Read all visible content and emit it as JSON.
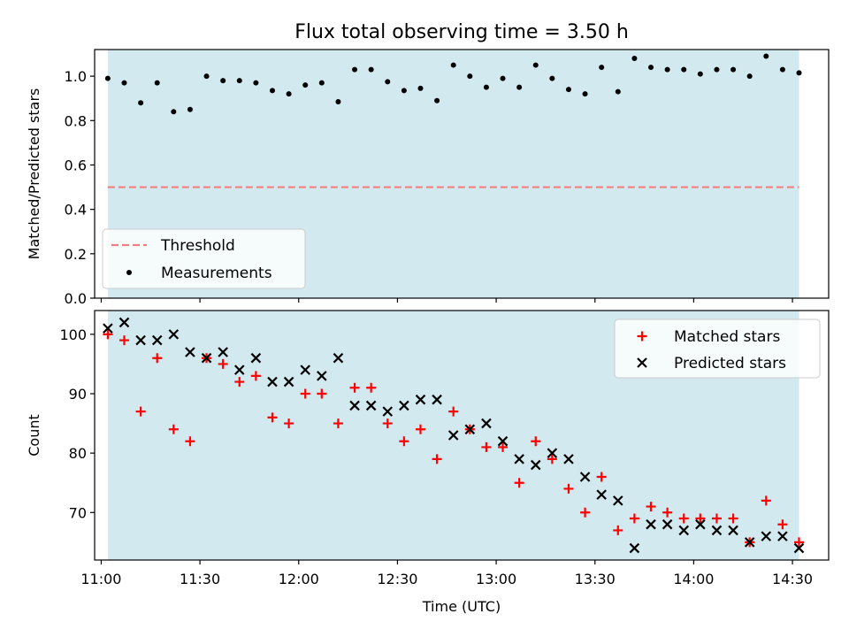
{
  "title": "Flux total observing time = 3.50 h",
  "colors": {
    "shade": "#d3e9f0",
    "threshold": "#f08080",
    "matched": "#ff0000",
    "predicted": "#000000",
    "measurement": "#000000"
  },
  "chart_data": [
    {
      "type": "scatter",
      "ylabel": "Matched/Predicted stars",
      "ylim": [
        0.0,
        1.12
      ],
      "yticks": [
        0.0,
        0.2,
        0.4,
        0.6,
        0.8,
        1.0
      ],
      "ytick_labels": [
        "0.0",
        "0.2",
        "0.4",
        "0.6",
        "0.8",
        "1.0"
      ],
      "xlim": [
        "10:58",
        "14:41"
      ],
      "shaded_interval": [
        "11:02",
        "14:32"
      ],
      "threshold": {
        "name": "Threshold",
        "y": 0.5,
        "x_range": [
          "11:02",
          "14:32"
        ]
      },
      "legend": {
        "location": "lower-left",
        "entries": [
          "Threshold",
          "Measurements"
        ]
      },
      "series": [
        {
          "name": "Measurements",
          "x": [
            "11:02",
            "11:07",
            "11:12",
            "11:17",
            "11:22",
            "11:27",
            "11:32",
            "11:37",
            "11:42",
            "11:47",
            "11:52",
            "11:57",
            "12:02",
            "12:07",
            "12:12",
            "12:17",
            "12:22",
            "12:27",
            "12:32",
            "12:37",
            "12:42",
            "12:47",
            "12:52",
            "12:57",
            "13:02",
            "13:07",
            "13:12",
            "13:17",
            "13:22",
            "13:27",
            "13:32",
            "13:37",
            "13:42",
            "13:47",
            "13:52",
            "13:57",
            "14:02",
            "14:07",
            "14:12",
            "14:17",
            "14:22",
            "14:27",
            "14:32"
          ],
          "y": [
            0.99,
            0.97,
            0.88,
            0.97,
            0.84,
            0.85,
            1.0,
            0.98,
            0.98,
            0.97,
            0.935,
            0.92,
            0.96,
            0.97,
            0.885,
            1.03,
            1.03,
            0.975,
            0.935,
            0.945,
            0.89,
            1.05,
            1.0,
            0.95,
            0.99,
            0.95,
            1.05,
            0.99,
            0.94,
            0.92,
            1.04,
            0.93,
            1.08,
            1.04,
            1.03,
            1.03,
            1.01,
            1.03,
            1.03,
            1.0,
            1.09,
            1.03,
            1.015
          ]
        }
      ]
    },
    {
      "type": "scatter",
      "xlabel": "Time (UTC)",
      "ylabel": "Count",
      "ylim": [
        62,
        104
      ],
      "yticks": [
        70,
        80,
        90,
        100
      ],
      "ytick_labels": [
        "70",
        "80",
        "90",
        "100"
      ],
      "xlim": [
        "10:58",
        "14:41"
      ],
      "xticks": [
        "11:00",
        "11:30",
        "12:00",
        "12:30",
        "13:00",
        "13:30",
        "14:00",
        "14:30"
      ],
      "xtick_labels": [
        "11:00",
        "11:30",
        "12:00",
        "12:30",
        "13:00",
        "13:30",
        "14:00",
        "14:30"
      ],
      "shaded_interval": [
        "11:02",
        "14:32"
      ],
      "legend": {
        "location": "upper-right",
        "entries": [
          "Matched stars",
          "Predicted stars"
        ]
      },
      "x": [
        "11:02",
        "11:07",
        "11:12",
        "11:17",
        "11:22",
        "11:27",
        "11:32",
        "11:37",
        "11:42",
        "11:47",
        "11:52",
        "11:57",
        "12:02",
        "12:07",
        "12:12",
        "12:17",
        "12:22",
        "12:27",
        "12:32",
        "12:37",
        "12:42",
        "12:47",
        "12:52",
        "12:57",
        "13:02",
        "13:07",
        "13:12",
        "13:17",
        "13:22",
        "13:27",
        "13:32",
        "13:37",
        "13:42",
        "13:47",
        "13:52",
        "13:57",
        "14:02",
        "14:07",
        "14:12",
        "14:17",
        "14:22",
        "14:27",
        "14:32"
      ],
      "series": [
        {
          "name": "Matched stars",
          "marker": "plus",
          "values": [
            100,
            99,
            87,
            96,
            84,
            82,
            96,
            95,
            92,
            93,
            86,
            85,
            90,
            90,
            85,
            91,
            91,
            85,
            82,
            84,
            79,
            87,
            84,
            81,
            81,
            75,
            82,
            79,
            74,
            70,
            76,
            67,
            69,
            71,
            70,
            69,
            69,
            69,
            69,
            65,
            72,
            68,
            65
          ]
        },
        {
          "name": "Predicted stars",
          "marker": "x",
          "values": [
            101,
            102,
            99,
            99,
            100,
            97,
            96,
            97,
            94,
            96,
            92,
            92,
            94,
            93,
            96,
            88,
            88,
            87,
            88,
            89,
            89,
            83,
            84,
            85,
            82,
            79,
            78,
            80,
            79,
            76,
            73,
            72,
            64,
            68,
            68,
            67,
            68,
            67,
            67,
            65,
            66,
            66,
            64
          ]
        }
      ]
    }
  ]
}
